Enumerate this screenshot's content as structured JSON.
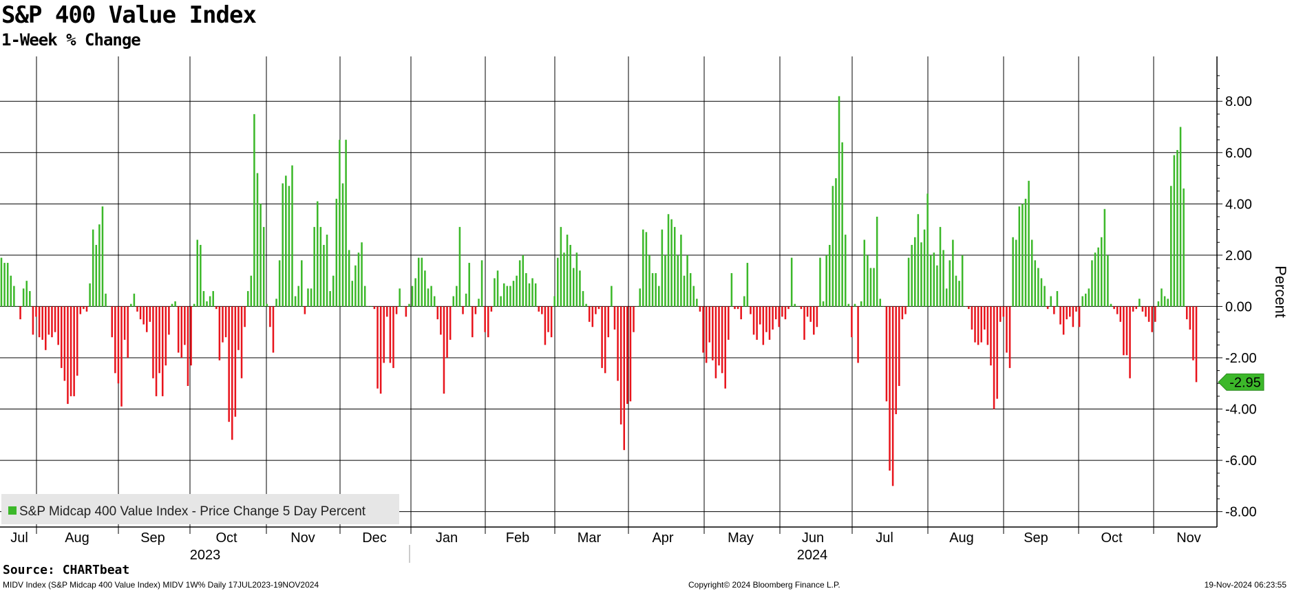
{
  "header": {
    "title": "S&P 400 Value Index",
    "subtitle": "1-Week % Change"
  },
  "footer": {
    "source": "Source: CHARTbeat",
    "ticker_info": "MIDV Index (S&P Midcap 400 Value Index) MIDV 1W% Daily 17JUL2023-19NOV2024",
    "copyright": "Copyright© 2024 Bloomberg Finance L.P.",
    "timestamp": "19-Nov-2024 06:23:55"
  },
  "colors": {
    "positive": "#3cb82a",
    "negative": "#e8141c",
    "grid": "#000000",
    "last_value_badge": "#3cb82a"
  },
  "chart_data": {
    "type": "bar",
    "title": "S&P 400 Value Index",
    "subtitle": "1-Week % Change",
    "ylabel": "Percent",
    "ylim": [
      -8.6,
      9.75
    ],
    "yticks": [
      8,
      6,
      4,
      2,
      0,
      -2,
      -4,
      -6,
      -8
    ],
    "ytick_labels": [
      "8.00",
      "6.00",
      "4.00",
      "2.00",
      "0.00",
      "-2.00",
      "-4.00",
      "-6.00",
      "-8.00"
    ],
    "grid": true,
    "legend": {
      "placement": "bottom-left",
      "entries": [
        "S&P Midcap 400 Value Index - Price Change 5 Day Percent"
      ]
    },
    "last_value": -2.95,
    "last_value_label": "-2.95",
    "month_labels": [
      "Jul",
      "Aug",
      "Sep",
      "Oct",
      "Nov",
      "Dec",
      "Jan",
      "Feb",
      "Mar",
      "Apr",
      "May",
      "Jun",
      "Jul",
      "Aug",
      "Sep",
      "Oct",
      "Nov"
    ],
    "year_labels": [
      "2023",
      "2024"
    ],
    "series": [
      {
        "name": "S&P Midcap 400 Value Index - Price Change 5 Day Percent",
        "values": [
          1.9,
          1.7,
          1.7,
          1.2,
          0.8,
          0,
          -0.5,
          0.7,
          1.0,
          0.6,
          -1.1,
          -0.4,
          -1.2,
          -1.3,
          -1.7,
          -1.1,
          -1.2,
          -1.0,
          -1.5,
          -2.4,
          -2.9,
          -3.8,
          -3.5,
          -3.5,
          -2.7,
          -0.3,
          -0.1,
          -0.2,
          0.9,
          3.0,
          2.4,
          3.2,
          3.9,
          0.5,
          0,
          -1.2,
          -2.6,
          -3.0,
          -3.9,
          -1.3,
          -2.0,
          0.1,
          0.5,
          -0.2,
          -0.5,
          -0.7,
          -1.0,
          -0.6,
          -2.8,
          -3.5,
          -2.6,
          -3.5,
          -2.3,
          -1.1,
          0.1,
          0.2,
          -1.8,
          -2.0,
          -1.5,
          -3.1,
          -2.3,
          0.1,
          2.6,
          2.4,
          0.6,
          0.2,
          0.4,
          0.6,
          -0.1,
          -2.1,
          -1.4,
          -1.2,
          -4.5,
          -5.2,
          -4.3,
          -1.7,
          -2.8,
          -0.8,
          0.6,
          1.2,
          7.5,
          5.2,
          4.0,
          3.1,
          0.1,
          -0.8,
          -1.8,
          0.3,
          1.8,
          4.8,
          5.1,
          4.7,
          5.5,
          0.4,
          0.8,
          1.8,
          -0.3,
          0.7,
          0.7,
          3.1,
          4.1,
          3.1,
          2.4,
          2.8,
          0.6,
          1.2,
          4.2,
          6.5,
          4.8,
          6.5,
          2.2,
          1.0,
          1.6,
          2.1,
          2.5,
          0.8,
          0,
          0,
          -0.1,
          -3.2,
          -3.4,
          -2.2,
          -0.4,
          -2.2,
          -2.4,
          -0.3,
          0.7,
          0,
          -0.4,
          0.1,
          0.8,
          1.1,
          1.9,
          1.9,
          1.4,
          0.7,
          0.8,
          0.4,
          -0.5,
          -1.1,
          -3.4,
          -2.0,
          -1.3,
          0.4,
          0.8,
          3.1,
          -0.3,
          0.5,
          1.7,
          -1.2,
          -0.3,
          0.3,
          1.8,
          -1.0,
          -1.2,
          -0.2,
          1.1,
          1.4,
          0.4,
          0.9,
          0.8,
          0.8,
          1.0,
          1.2,
          1.8,
          2.0,
          1.3,
          0.9,
          1.1,
          0.9,
          -0.2,
          -0.3,
          -1.5,
          -1.0,
          -1.2,
          0.4,
          1.9,
          3.1,
          2.1,
          2.8,
          2.4,
          1.5,
          2.1,
          1.4,
          0.6,
          0.1,
          -0.6,
          -0.8,
          -0.3,
          -0.1,
          -2.4,
          -2.6,
          -1.2,
          0.8,
          -0.9,
          -2.9,
          -4.6,
          -5.6,
          -3.8,
          -3.7,
          -1.0,
          0,
          0.7,
          3.0,
          2.9,
          2.0,
          1.3,
          1.3,
          0.8,
          3.0,
          2.0,
          3.6,
          3.4,
          3.1,
          2.0,
          2.8,
          1.2,
          2.0,
          1.3,
          0.8,
          0.3,
          -0.2,
          -1.8,
          -2.2,
          -1.4,
          -2.1,
          -2.8,
          -2.3,
          -2.6,
          -3.2,
          -1.3,
          1.3,
          -0.1,
          -0.1,
          -0.5,
          0.4,
          1.7,
          -0.3,
          -1.1,
          -1.3,
          -0.7,
          -1.5,
          -1.0,
          -1.3,
          -0.9,
          -0.5,
          -0.8,
          -0.4,
          -0.5,
          -0.1,
          1.9,
          0.1,
          0,
          -0.1,
          -1.3,
          -0.4,
          -0.6,
          -1.1,
          -0.8,
          1.9,
          0.2,
          2.0,
          2.4,
          4.7,
          5.0,
          8.2,
          6.4,
          2.8,
          0.1,
          -1.2,
          0.1,
          -2.2,
          0.2,
          2.6,
          2.0,
          1.5,
          1.5,
          3.5,
          0.3,
          0,
          -3.7,
          -6.4,
          -7.0,
          -4.2,
          -3.1,
          -0.5,
          -0.3,
          1.9,
          2.4,
          2.7,
          3.6,
          2.5,
          3.0,
          4.4,
          2.0,
          2.1,
          1.6,
          3.1,
          2.2,
          0.7,
          1.8,
          2.6,
          1.2,
          1.0,
          2.0,
          0,
          -0.1,
          -0.9,
          -1.4,
          -1.5,
          -1.4,
          -0.9,
          -1.5,
          -2.3,
          -4.0,
          -3.6,
          -0.6,
          -0.4,
          -1.8,
          -2.4,
          2.7,
          2.6,
          3.9,
          4.0,
          4.2,
          4.9,
          2.6,
          1.8,
          1.5,
          1.1,
          0.8,
          -0.1,
          0.4,
          -0.3,
          0.6,
          -0.7,
          -1.1,
          -0.5,
          -0.4,
          -0.8,
          -0.2,
          -0.8,
          0.4,
          0.5,
          0.7,
          1.8,
          2.1,
          2.3,
          2.7,
          3.8,
          2.0,
          0.1,
          -0.1,
          -0.3,
          -0.6,
          -1.9,
          -1.9,
          -2.8,
          -0.2,
          -0.1,
          0.3,
          -0.2,
          -0.4,
          -0.6,
          -1.0,
          -0.6,
          0.2,
          0.7,
          0.4,
          0.3,
          4.7,
          5.9,
          6.1,
          7.0,
          4.6,
          -0.5,
          -0.9,
          -2.1,
          -2.95
        ]
      }
    ]
  }
}
